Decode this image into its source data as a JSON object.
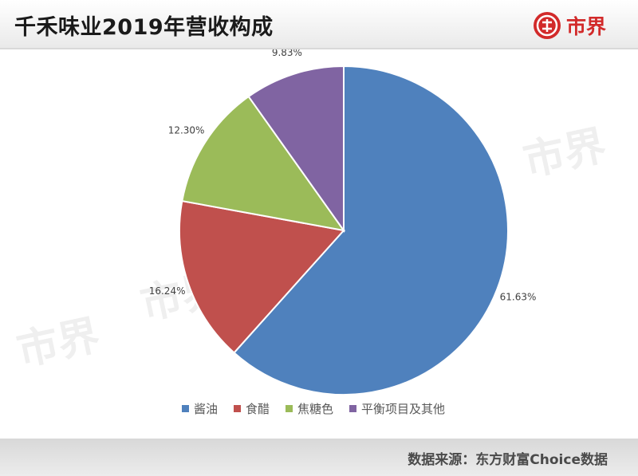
{
  "header": {
    "title": "千禾味业2019年营收构成"
  },
  "logo": {
    "text": "市界",
    "icon": "brand-logo-icon",
    "color": "#d22a2a"
  },
  "watermark": {
    "text": "市界"
  },
  "footer": {
    "source": "数据来源：东方财富Choice数据"
  },
  "chart_data": {
    "type": "pie",
    "title": "千禾味业2019年营收构成",
    "legend_position": "bottom",
    "slices": [
      {
        "label": "酱油",
        "value": 61.63,
        "display": "61.63%",
        "color": "#4f81bd"
      },
      {
        "label": "食醋",
        "value": 16.24,
        "display": "16.24%",
        "color": "#c0504d"
      },
      {
        "label": "焦糖色",
        "value": 12.3,
        "display": "12.30%",
        "color": "#9bbb59"
      },
      {
        "label": "平衡项目及其他",
        "value": 9.83,
        "display": "9.83%",
        "color": "#8064a2"
      }
    ]
  }
}
